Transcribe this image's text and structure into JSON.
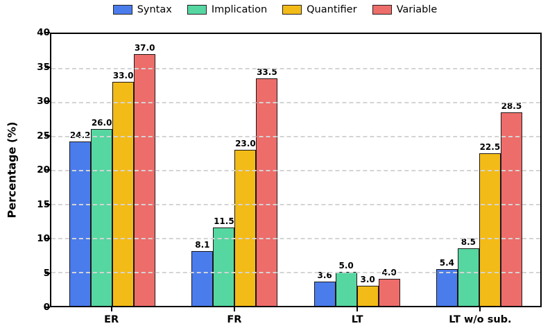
{
  "chart_data": {
    "type": "bar",
    "title": "",
    "xlabel": "",
    "ylabel": "Percentage (%)",
    "categories": [
      "ER",
      "FR",
      "LT",
      "LT w/o sub."
    ],
    "series": [
      {
        "name": "Syntax",
        "color": "#4a7cec",
        "values": [
          24.2,
          8.1,
          3.6,
          5.4
        ]
      },
      {
        "name": "Implication",
        "color": "#56d6a1",
        "values": [
          26.0,
          11.5,
          5.0,
          8.5
        ]
      },
      {
        "name": "Quantifier",
        "color": "#f3bb17",
        "values": [
          33.0,
          23.0,
          3.0,
          22.5
        ]
      },
      {
        "name": "Variable",
        "color": "#ed6d6a",
        "values": [
          37.0,
          33.5,
          4.0,
          28.5
        ]
      }
    ],
    "ylim": [
      0,
      40
    ],
    "yticks": [
      0,
      5,
      10,
      15,
      20,
      25,
      30,
      35,
      40
    ],
    "grid": "horizontal-dashed",
    "grid_color": "#d4d4d4",
    "bar_edge_color": "#1c1717",
    "value_label_decimals": 1,
    "legend_position": "top-center"
  }
}
